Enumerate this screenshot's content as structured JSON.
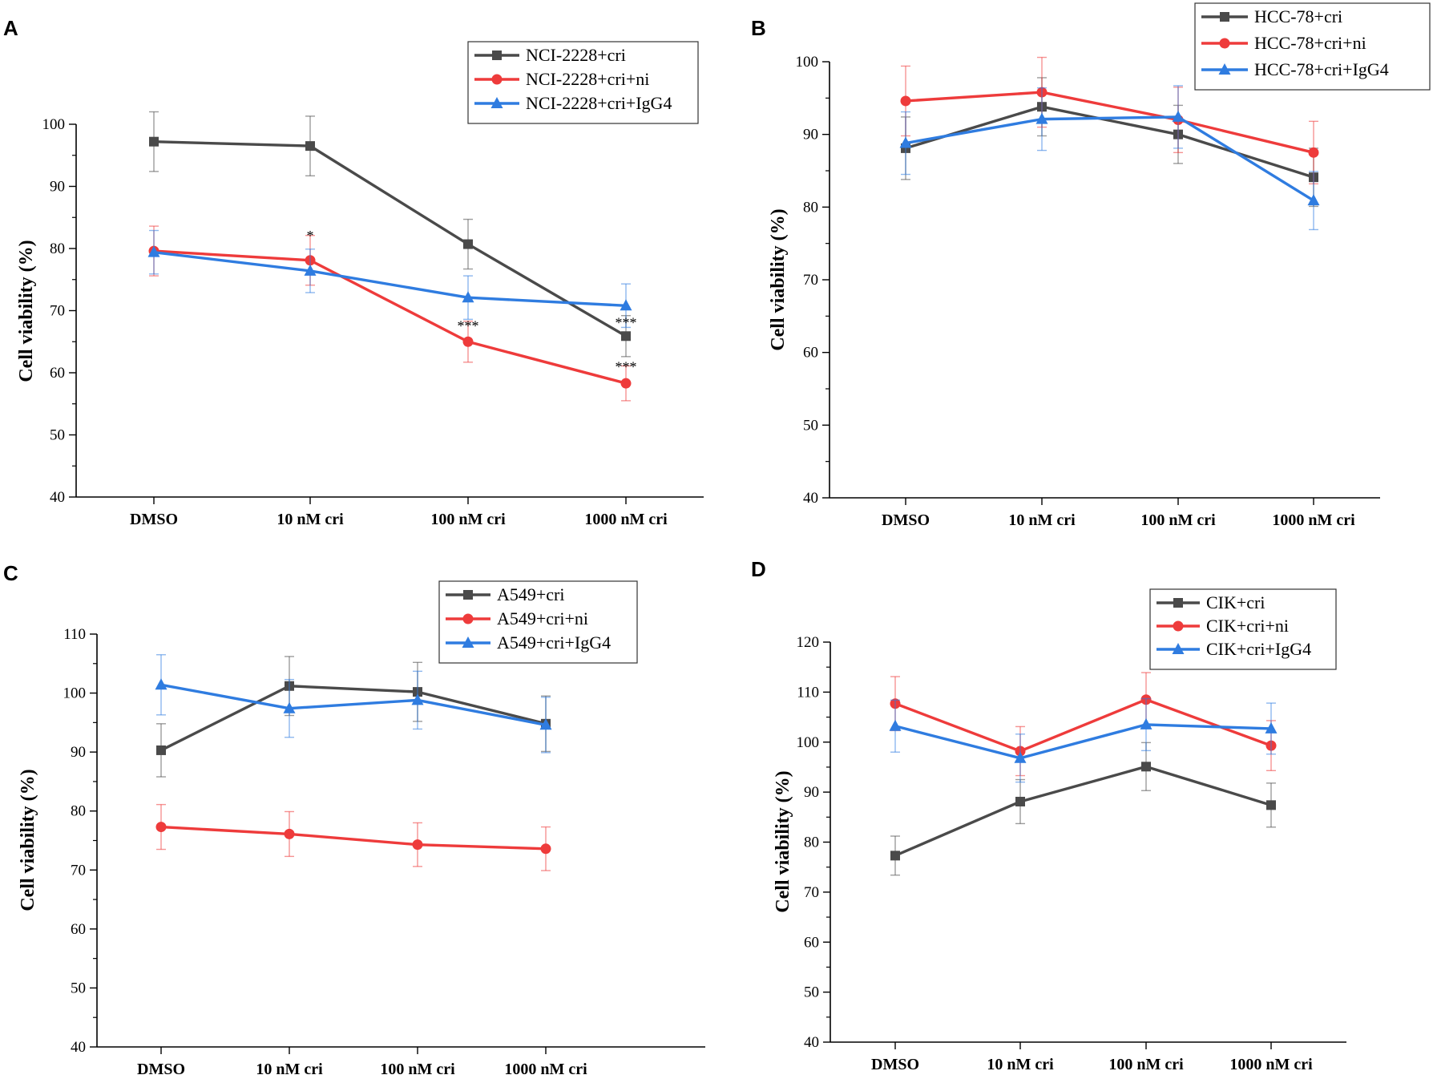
{
  "colors": {
    "cri": "#4a4a4a",
    "ni": "#ee3b3b",
    "igg4": "#2f7ce0",
    "axis": "#000000"
  },
  "chart_data": [
    {
      "panel": "A",
      "type": "line",
      "ylabel": "Cell viability (%)",
      "xlabel": "",
      "categories": [
        "DMSO",
        "10 nM cri",
        "100 nM cri",
        "1000 nM cri"
      ],
      "ylim": [
        40,
        100
      ],
      "yticks": [
        40,
        50,
        60,
        70,
        80,
        90,
        100
      ],
      "legend_position": "top-right",
      "series": [
        {
          "name": "NCI-2228+cri",
          "key": "cri",
          "marker": "square",
          "values": [
            97.2,
            96.5,
            80.7,
            65.9
          ],
          "errors": [
            4.8,
            4.8,
            4.0,
            3.3
          ]
        },
        {
          "name": "NCI-2228+cri+ni",
          "key": "ni",
          "marker": "circle",
          "values": [
            79.6,
            78.1,
            65.0,
            58.3
          ],
          "errors": [
            4.0,
            4.0,
            3.3,
            2.8
          ]
        },
        {
          "name": "NCI-2228+cri+IgG4",
          "key": "igg4",
          "marker": "triangle",
          "values": [
            79.4,
            76.4,
            72.1,
            70.8
          ],
          "errors": [
            3.5,
            3.5,
            3.5,
            3.5
          ]
        }
      ],
      "annotations": [
        {
          "text": "*",
          "category": 1,
          "y": 81.3
        },
        {
          "text": "***",
          "category": 2,
          "y": 66.8
        },
        {
          "text": "***",
          "category": 3,
          "y": 67.3
        },
        {
          "text": "***",
          "category": 3,
          "y": 60.2
        }
      ]
    },
    {
      "panel": "B",
      "type": "line",
      "ylabel": "Cell viability (%)",
      "xlabel": "",
      "categories": [
        "DMSO",
        "10 nM cri",
        "100 nM cri",
        "1000 nM cri"
      ],
      "ylim": [
        40,
        100
      ],
      "yticks": [
        40,
        50,
        60,
        70,
        80,
        90,
        100
      ],
      "legend_position": "top-right",
      "series": [
        {
          "name": "HCC-78+cri",
          "key": "cri",
          "marker": "square",
          "values": [
            88.1,
            93.8,
            90.0,
            84.1
          ],
          "errors": [
            4.3,
            4.0,
            4.0,
            4.0
          ]
        },
        {
          "name": "HCC-78+cri+ni",
          "key": "ni",
          "marker": "circle",
          "values": [
            94.6,
            95.8,
            92.0,
            87.5
          ],
          "errors": [
            4.8,
            4.8,
            4.5,
            4.3
          ]
        },
        {
          "name": "HCC-78+cri+IgG4",
          "key": "igg4",
          "marker": "triangle",
          "values": [
            88.8,
            92.1,
            92.4,
            80.9
          ],
          "errors": [
            4.3,
            4.3,
            4.3,
            4.0
          ]
        }
      ],
      "annotations": []
    },
    {
      "panel": "C",
      "type": "line",
      "ylabel": "Cell viability (%)",
      "xlabel": "",
      "categories": [
        "DMSO",
        "10 nM cri",
        "100 nM cri",
        "1000 nM cri"
      ],
      "ylim": [
        40,
        110
      ],
      "yticks": [
        40,
        50,
        60,
        70,
        80,
        90,
        100,
        110
      ],
      "legend_position": "top-right",
      "series": [
        {
          "name": "A549+cri",
          "key": "cri",
          "marker": "square",
          "values": [
            90.3,
            101.2,
            100.2,
            94.8
          ],
          "errors": [
            4.5,
            5.0,
            5.0,
            4.7
          ]
        },
        {
          "name": "A549+cri+ni",
          "key": "ni",
          "marker": "circle",
          "values": [
            77.3,
            76.1,
            74.3,
            73.6
          ],
          "errors": [
            3.8,
            3.8,
            3.7,
            3.7
          ]
        },
        {
          "name": "A549+cri+IgG4",
          "key": "igg4",
          "marker": "triangle",
          "values": [
            101.4,
            97.4,
            98.8,
            94.6
          ],
          "errors": [
            5.1,
            4.9,
            4.9,
            4.7
          ]
        }
      ],
      "annotations": []
    },
    {
      "panel": "D",
      "type": "line",
      "ylabel": "Cell viability (%)",
      "xlabel": "",
      "categories": [
        "DMSO",
        "10 nM cri",
        "100 nM cri",
        "1000 nM cri"
      ],
      "ylim": [
        40,
        120
      ],
      "yticks": [
        40,
        50,
        60,
        70,
        80,
        90,
        100,
        110,
        120
      ],
      "legend_position": "top-right",
      "series": [
        {
          "name": "CIK+cri",
          "key": "cri",
          "marker": "square",
          "values": [
            77.3,
            88.1,
            95.1,
            87.4
          ],
          "errors": [
            3.9,
            4.4,
            4.8,
            4.4
          ]
        },
        {
          "name": "CIK+cri+ni",
          "key": "ni",
          "marker": "circle",
          "values": [
            107.7,
            98.2,
            108.5,
            99.3
          ],
          "errors": [
            5.4,
            4.9,
            5.4,
            5.0
          ]
        },
        {
          "name": "CIK+cri+IgG4",
          "key": "igg4",
          "marker": "triangle",
          "values": [
            103.2,
            96.8,
            103.5,
            102.7
          ],
          "errors": [
            5.2,
            4.8,
            5.2,
            5.1
          ]
        }
      ],
      "annotations": []
    }
  ]
}
